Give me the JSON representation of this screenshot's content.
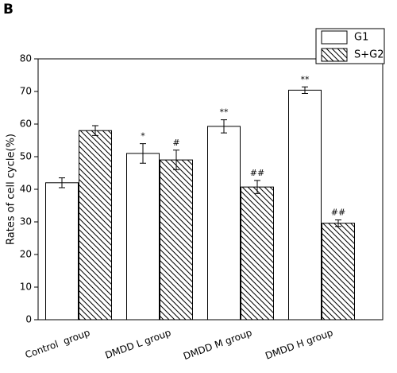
{
  "chart_data": {
    "type": "bar",
    "panel_label": "B",
    "ylabel": "Rates of cell cycle(%)",
    "categories": [
      "Control  group",
      "DMDD L group",
      "DMDD M group",
      "DMDD H group"
    ],
    "series": [
      {
        "name": "G1",
        "color": "#ffffff",
        "hatch": false,
        "values": [
          42,
          51,
          59.3,
          70.4
        ],
        "errors": [
          1.5,
          3,
          2,
          1
        ],
        "annotations": [
          null,
          "*",
          "**",
          "**"
        ]
      },
      {
        "name": "S+G2",
        "color": "#ffffff",
        "hatch": true,
        "values": [
          58,
          49,
          40.7,
          29.6
        ],
        "errors": [
          1.5,
          3,
          2,
          1
        ],
        "annotations": [
          null,
          "#",
          "##",
          "##"
        ]
      }
    ],
    "ylim": [
      0,
      80
    ],
    "yticks": [
      0,
      10,
      20,
      30,
      40,
      50,
      60,
      70,
      80
    ],
    "grid": false,
    "legend": "top-right"
  }
}
